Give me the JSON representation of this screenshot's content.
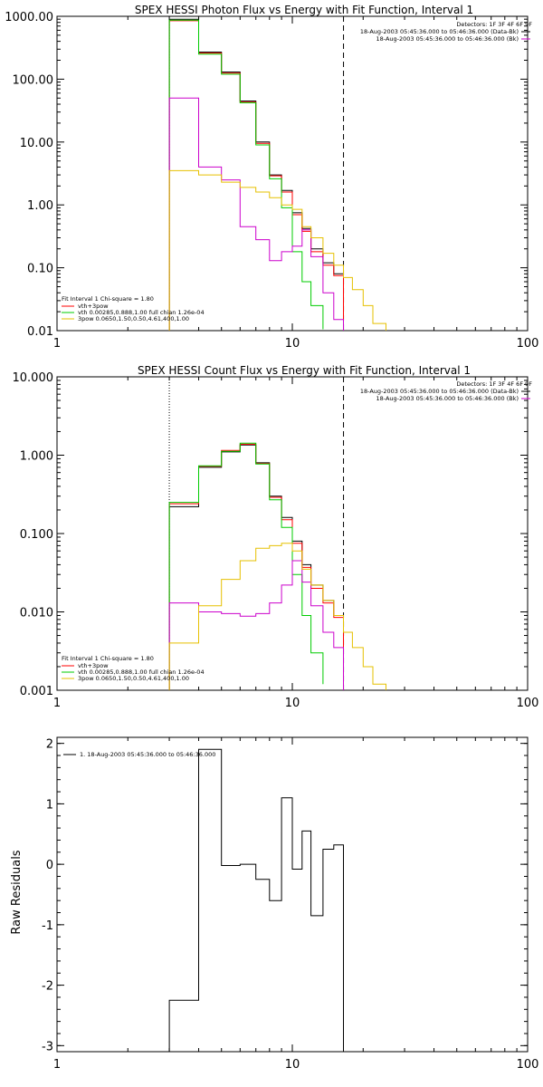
{
  "chart_data": [
    {
      "type": "line",
      "title": "SPEX HESSI Photon Flux vs Energy with Fit Function, Interval 1",
      "xlabel": "",
      "ylabel": "",
      "xscale": "log",
      "yscale": "log",
      "xlim": [
        1,
        100
      ],
      "ylim": [
        0.01,
        1000
      ],
      "xticks": [
        {
          "v": 1,
          "label": "1"
        },
        {
          "v": 10,
          "label": "10"
        },
        {
          "v": 100,
          "label": "100"
        }
      ],
      "yticks": [
        {
          "v": 0.01,
          "label": "0.01"
        },
        {
          "v": 0.1,
          "label": "0.10"
        },
        {
          "v": 1,
          "label": "1.00"
        },
        {
          "v": 10,
          "label": "10.00"
        },
        {
          "v": 100,
          "label": "100.00"
        },
        {
          "v": 1000,
          "label": "1000.00"
        }
      ],
      "vlines": [
        {
          "x": 3.0,
          "style": "dotted",
          "color": "#000000"
        },
        {
          "x": 16.5,
          "style": "dashed",
          "color": "#000000"
        }
      ],
      "info_lines": [
        "Detectors: 1F 3F 4F 6F 9F",
        "18-Aug-2003 05:45:36.000 to 05:46:36.000 (Data-Bk)",
        "18-Aug-2003 05:45:36.000 to 05:46:36.000 (Bk)"
      ],
      "info_colors": [
        "",
        "#000000",
        "#cc00cc"
      ],
      "fit_lines": [
        "Fit Interval 1   Chi-square = 1.80",
        "vth+3pow",
        "vth 0.00285,0.888,1.00   full chian 1.26e-04",
        "3pow 0.0650,1.50,0.50,4.61,400,1.00"
      ],
      "fit_colors": [
        "",
        "#ff0000",
        "#00cc00",
        "#e6c000"
      ],
      "series": [
        {
          "color": "#000000",
          "edges": [
            3.0,
            4.0,
            5.0,
            6.0,
            7.0,
            8.0,
            9.0,
            10.0,
            11.0,
            12.0,
            13.5,
            15.0,
            16.5
          ],
          "values": [
            900,
            270,
            130,
            45,
            10,
            3.0,
            1.7,
            0.75,
            0.42,
            0.2,
            0.12,
            0.08
          ]
        },
        {
          "color": "#ff0000",
          "edges": [
            3.0,
            4.0,
            5.0,
            6.0,
            7.0,
            8.0,
            9.0,
            10.0,
            11.0,
            12.0,
            13.5,
            15.0,
            16.5
          ],
          "values": [
            850,
            260,
            125,
            43,
            9.5,
            2.9,
            1.6,
            0.7,
            0.38,
            0.18,
            0.11,
            0.075
          ]
        },
        {
          "color": "#00cc00",
          "edges": [
            3.0,
            4.0,
            5.0,
            6.0,
            7.0,
            8.0,
            9.0,
            10.0,
            11.0,
            12.0,
            13.5
          ],
          "values": [
            870,
            250,
            120,
            42,
            9,
            2.6,
            0.9,
            0.18,
            0.06,
            0.025,
            0.0105
          ]
        },
        {
          "color": "#cc00cc",
          "edges": [
            3.0,
            4.0,
            5.0,
            6.0,
            7.0,
            8.0,
            9.0,
            10.0,
            11.0,
            12.0,
            13.5,
            15.0,
            16.5
          ],
          "values": [
            50,
            4.0,
            2.5,
            0.45,
            0.28,
            0.13,
            0.18,
            0.22,
            0.4,
            0.15,
            0.04,
            0.015
          ]
        },
        {
          "color": "#e6c000",
          "edges": [
            3.0,
            4.0,
            5.0,
            6.0,
            7.0,
            8.0,
            9.0,
            10.0,
            11.0,
            12.0,
            13.5,
            15.0,
            16.5,
            18.0,
            20.0,
            22.0,
            25.0
          ],
          "values": [
            3.5,
            3.0,
            2.3,
            1.9,
            1.6,
            1.3,
            1.0,
            0.85,
            0.45,
            0.3,
            0.17,
            0.11,
            0.07,
            0.045,
            0.025,
            0.013
          ]
        }
      ]
    },
    {
      "type": "line",
      "title": "SPEX HESSI Count Flux vs Energy with Fit Function, Interval 1",
      "xlabel": "",
      "ylabel": "",
      "xscale": "log",
      "yscale": "log",
      "xlim": [
        1,
        100
      ],
      "ylim": [
        0.001,
        10
      ],
      "xticks": [
        {
          "v": 1,
          "label": "1"
        },
        {
          "v": 10,
          "label": "10"
        },
        {
          "v": 100,
          "label": "100"
        }
      ],
      "yticks": [
        {
          "v": 0.001,
          "label": "0.001"
        },
        {
          "v": 0.01,
          "label": "0.010"
        },
        {
          "v": 0.1,
          "label": "0.100"
        },
        {
          "v": 1,
          "label": "1.000"
        },
        {
          "v": 10,
          "label": "10.000"
        }
      ],
      "vlines": [
        {
          "x": 3.0,
          "style": "dotted",
          "color": "#000000"
        },
        {
          "x": 16.5,
          "style": "dashed",
          "color": "#000000"
        }
      ],
      "info_lines": [
        "Detectors: 1F 3F 4F 6F 9F",
        "18-Aug-2003 05:45:36.000 to 05:46:36.000 (Data-Bk)",
        "18-Aug-2003 05:45:36.000 to 05:46:36.000 (Bk)"
      ],
      "info_colors": [
        "",
        "#000000",
        "#cc00cc"
      ],
      "fit_lines": [
        "Fit Interval 1   Chi-square = 1.80",
        "vth+3pow",
        "vth 0.00285,0.888,1.00   full chian 1.26e-04",
        "3pow 0.0650,1.50,0.50,4.61,400,1.00"
      ],
      "fit_colors": [
        "",
        "#ff0000",
        "#00cc00",
        "#e6c000"
      ],
      "series": [
        {
          "color": "#000000",
          "edges": [
            3.0,
            4.0,
            5.0,
            6.0,
            7.0,
            8.0,
            9.0,
            10.0,
            11.0,
            12.0,
            13.5,
            15.0,
            16.5
          ],
          "values": [
            0.22,
            0.7,
            1.1,
            1.35,
            0.8,
            0.3,
            0.16,
            0.08,
            0.04,
            0.022,
            0.014,
            0.009
          ]
        },
        {
          "color": "#ff0000",
          "edges": [
            3.0,
            4.0,
            5.0,
            6.0,
            7.0,
            8.0,
            9.0,
            10.0,
            11.0,
            12.0,
            13.5,
            15.0,
            16.5
          ],
          "values": [
            0.24,
            0.72,
            1.15,
            1.38,
            0.78,
            0.29,
            0.15,
            0.075,
            0.037,
            0.02,
            0.013,
            0.0085
          ]
        },
        {
          "color": "#00cc00",
          "edges": [
            3.0,
            4.0,
            5.0,
            6.0,
            7.0,
            8.0,
            9.0,
            10.0,
            11.0,
            12.0,
            13.5
          ],
          "values": [
            0.25,
            0.73,
            1.12,
            1.42,
            0.77,
            0.27,
            0.12,
            0.03,
            0.009,
            0.003,
            0.0012
          ]
        },
        {
          "color": "#cc00cc",
          "edges": [
            3.0,
            4.0,
            5.0,
            6.0,
            7.0,
            8.0,
            9.0,
            10.0,
            11.0,
            12.0,
            13.5,
            15.0,
            16.5
          ],
          "values": [
            0.013,
            0.01,
            0.0095,
            0.0088,
            0.0095,
            0.013,
            0.022,
            0.045,
            0.024,
            0.012,
            0.0055,
            0.0035
          ]
        },
        {
          "color": "#e6c000",
          "edges": [
            3.0,
            4.0,
            5.0,
            6.0,
            7.0,
            8.0,
            9.0,
            10.0,
            11.0,
            12.0,
            13.5,
            15.0,
            16.5,
            18.0,
            20.0,
            22.0,
            25.0
          ],
          "values": [
            0.004,
            0.012,
            0.026,
            0.045,
            0.065,
            0.07,
            0.075,
            0.06,
            0.035,
            0.022,
            0.014,
            0.009,
            0.0055,
            0.0035,
            0.002,
            0.0012
          ]
        }
      ]
    },
    {
      "type": "line",
      "title": "",
      "xlabel": "",
      "ylabel": "Raw Residuals",
      "xscale": "log",
      "yscale": "linear",
      "xlim": [
        1,
        100
      ],
      "ylim": [
        -3.1,
        2.1
      ],
      "xticks": [
        {
          "v": 1,
          "label": "1"
        },
        {
          "v": 10,
          "label": "10"
        },
        {
          "v": 100,
          "label": "100"
        }
      ],
      "yticks": [
        {
          "v": -3,
          "label": "-3"
        },
        {
          "v": -2,
          "label": "-2"
        },
        {
          "v": -1,
          "label": "-1"
        },
        {
          "v": 0,
          "label": "0"
        },
        {
          "v": 1,
          "label": "1"
        },
        {
          "v": 2,
          "label": "2"
        }
      ],
      "vlines": [],
      "legend_text": "1. 18-Aug-2003 05:45:36.000 to 05:46:36.000",
      "legend_color": "#000000",
      "series": [
        {
          "color": "#000000",
          "edges": [
            3.0,
            4.0,
            5.0,
            6.0,
            7.0,
            8.0,
            9.0,
            10.0,
            11.0,
            12.0,
            13.5,
            15.0,
            16.5
          ],
          "values": [
            -2.25,
            1.9,
            -0.02,
            0.0,
            -0.25,
            -0.6,
            1.1,
            -0.08,
            0.55,
            -0.85,
            0.25,
            0.32
          ],
          "drop_to": -3.1
        }
      ]
    }
  ]
}
